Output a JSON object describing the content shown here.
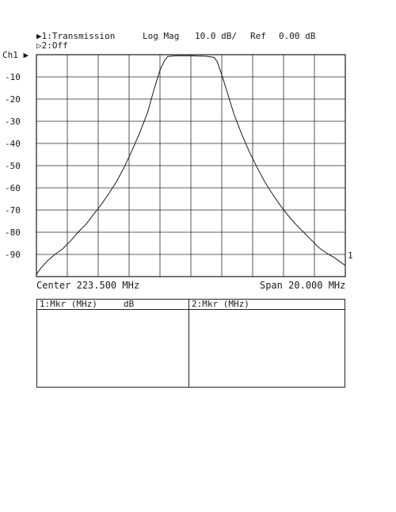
{
  "header": {
    "ch1_marker": "▶1:Transmission",
    "ch2_marker": "▷2:Off",
    "format": "Log Mag",
    "scale": "10.0 dB/",
    "ref": "Ref",
    "ref_value": "0.00 dB"
  },
  "channel_label": "Ch1 ▶",
  "trace_end_label": "1",
  "footer": {
    "center": "Center 223.500 MHz",
    "span": "Span 20.000 MHz"
  },
  "marker_table": {
    "col1_header": "1:Mkr (MHz)     dB",
    "col2_header": "2:Mkr (MHz)"
  },
  "chart_data": {
    "type": "line",
    "title": "",
    "xlabel": "",
    "ylabel": "",
    "xlim": [
      213.5,
      233.5
    ],
    "ylim": [
      -100,
      0
    ],
    "grid": true,
    "y_ticks": [
      -10,
      -20,
      -30,
      -40,
      -50,
      -60,
      -70,
      -80,
      -90
    ],
    "y_tick_labels": [
      "-10",
      "-20",
      "-30",
      "-40",
      "-50",
      "-60",
      "-70",
      "-80",
      "-90"
    ],
    "series": [
      {
        "color": "#1a1a1a",
        "x": [
          213.5,
          213.8,
          214.2,
          214.7,
          215.2,
          215.7,
          216.2,
          216.7,
          217.2,
          217.7,
          218.2,
          218.7,
          219.2,
          219.7,
          220.2,
          220.7,
          221.1,
          221.5,
          221.8,
          222.0,
          222.5,
          223.0,
          223.5,
          224.0,
          224.5,
          225.0,
          225.2,
          225.5,
          225.9,
          226.3,
          226.8,
          227.3,
          227.8,
          228.3,
          228.8,
          229.3,
          229.8,
          230.3,
          230.8,
          231.3,
          231.8,
          232.3,
          232.8,
          233.2,
          233.5
        ],
        "y": [
          -99,
          -96,
          -93,
          -90,
          -87.5,
          -84,
          -80,
          -76.5,
          -72,
          -67.5,
          -62.5,
          -57,
          -50.5,
          -43,
          -35,
          -26,
          -16,
          -7,
          -2.5,
          -0.8,
          -0.5,
          -0.5,
          -0.5,
          -0.6,
          -0.7,
          -1.2,
          -3.0,
          -9,
          -18,
          -27,
          -36,
          -44,
          -51,
          -57.5,
          -63,
          -68,
          -72.5,
          -76.5,
          -80,
          -83.5,
          -87,
          -89.5,
          -91.5,
          -93.5,
          -95
        ]
      }
    ]
  }
}
